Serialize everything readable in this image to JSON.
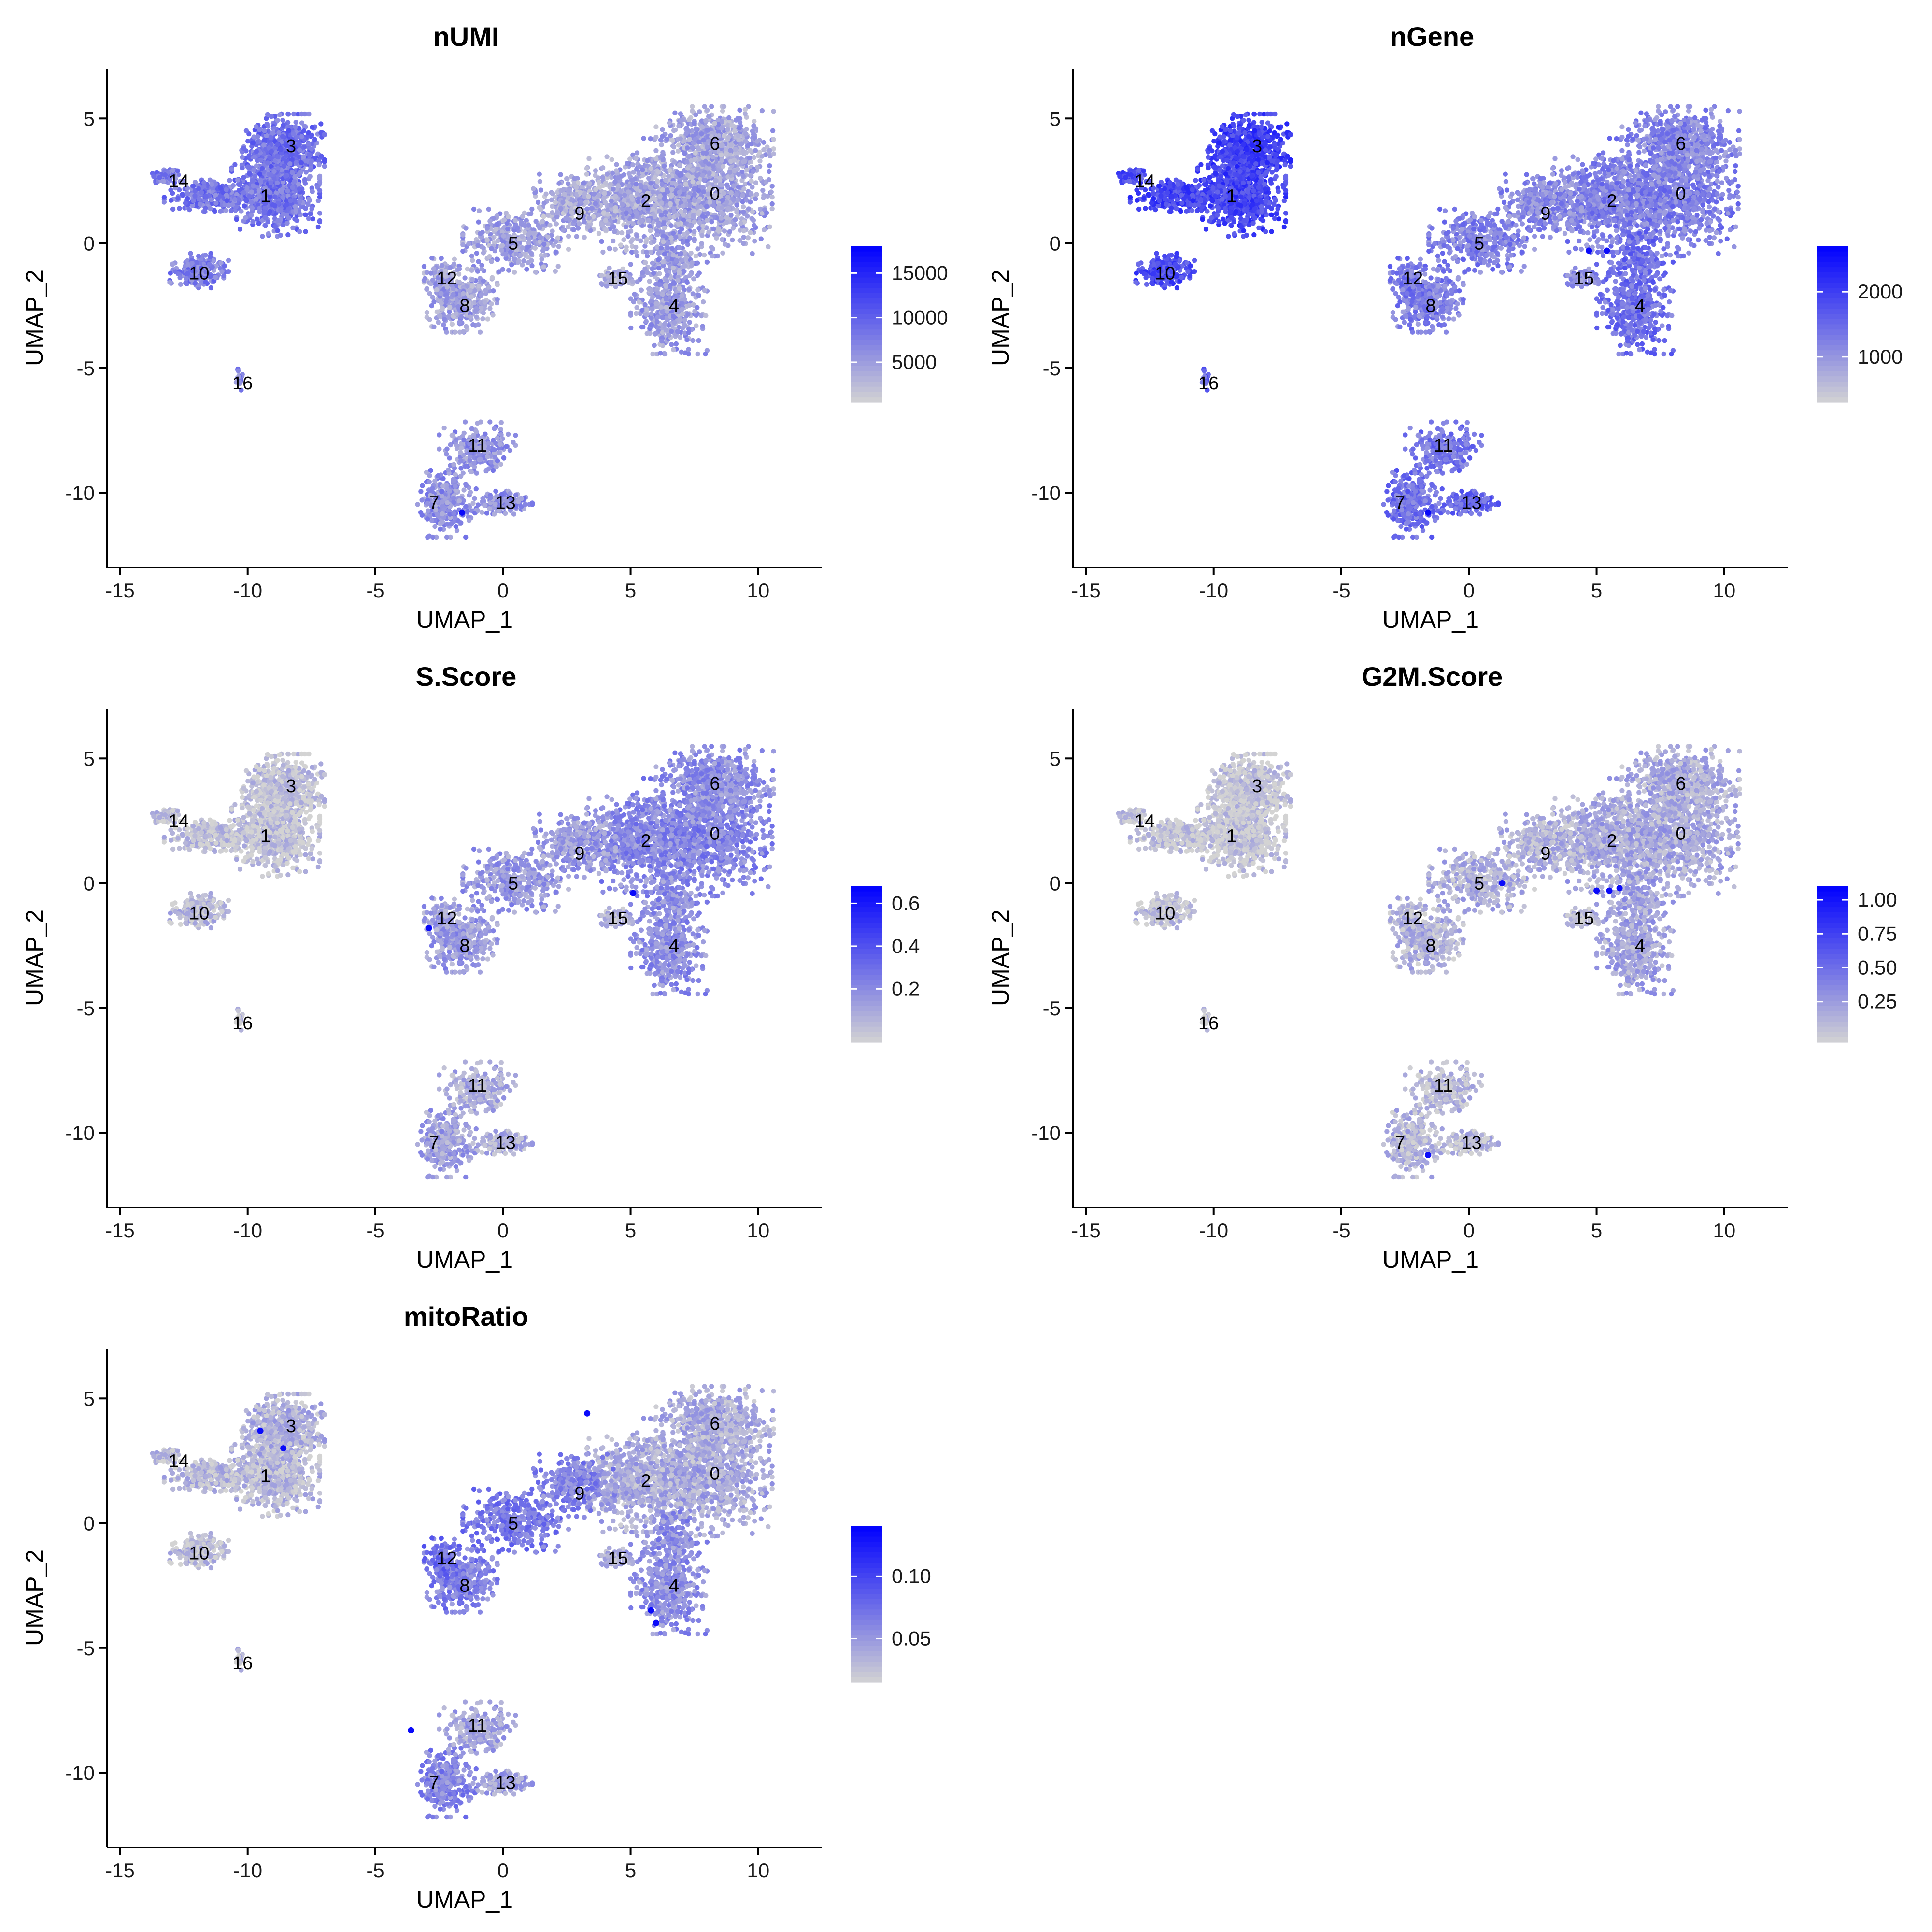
{
  "chart_data": [
    {
      "type": "scatter",
      "title": "nUMI",
      "xlabel": "UMAP_1",
      "ylabel": "UMAP_2",
      "xlim": [
        -15.5,
        12.5
      ],
      "ylim": [
        -13,
        7
      ],
      "xticks": [
        -15,
        -10,
        -5,
        0,
        5,
        10
      ],
      "yticks": [
        5,
        0,
        -5,
        -10
      ],
      "color_scale": {
        "low": "#d3d3d3",
        "high": "#0000ff",
        "min": 500,
        "max": 18000,
        "ticks": [
          15000,
          10000,
          5000
        ]
      },
      "cluster_intensity": {
        "0": 0.22,
        "1": 0.42,
        "2": 0.2,
        "3": 0.45,
        "4": 0.24,
        "5": 0.22,
        "6": 0.2,
        "7": 0.3,
        "8": 0.22,
        "9": 0.18,
        "10": 0.38,
        "11": 0.28,
        "12": 0.22,
        "13": 0.3,
        "14": 0.38,
        "15": 0.18,
        "16": 0.35
      },
      "hotspots": [
        [
          -1.6,
          -10.8
        ]
      ]
    },
    {
      "type": "scatter",
      "title": "nGene",
      "xlabel": "UMAP_1",
      "ylabel": "UMAP_2",
      "xlim": [
        -15.5,
        12.5
      ],
      "ylim": [
        -13,
        7
      ],
      "xticks": [
        -15,
        -10,
        -5,
        0,
        5,
        10
      ],
      "yticks": [
        5,
        0,
        -5,
        -10
      ],
      "color_scale": {
        "low": "#d3d3d3",
        "high": "#0000ff",
        "min": 300,
        "max": 2700,
        "ticks": [
          2000,
          1000
        ]
      },
      "cluster_intensity": {
        "0": 0.38,
        "1": 0.65,
        "2": 0.36,
        "3": 0.68,
        "4": 0.45,
        "5": 0.36,
        "6": 0.34,
        "7": 0.45,
        "8": 0.38,
        "9": 0.32,
        "10": 0.62,
        "11": 0.42,
        "12": 0.4,
        "13": 0.5,
        "14": 0.6,
        "15": 0.32,
        "16": 0.5
      },
      "hotspots": [
        [
          4.7,
          -0.3
        ],
        [
          5.4,
          -0.3
        ],
        [
          -1.6,
          -10.8
        ]
      ]
    },
    {
      "type": "scatter",
      "title": "S.Score",
      "xlabel": "UMAP_1",
      "ylabel": "UMAP_2",
      "xlim": [
        -15.5,
        12.5
      ],
      "ylim": [
        -13,
        7
      ],
      "xticks": [
        -15,
        -10,
        -5,
        0,
        5,
        10
      ],
      "yticks": [
        5,
        0,
        -5,
        -10
      ],
      "color_scale": {
        "low": "#d3d3d3",
        "high": "#0000ff",
        "min": -0.05,
        "max": 0.68,
        "ticks": [
          0.6,
          0.4,
          0.2
        ]
      },
      "cluster_intensity": {
        "0": 0.35,
        "1": 0.06,
        "2": 0.33,
        "3": 0.06,
        "4": 0.3,
        "5": 0.25,
        "6": 0.3,
        "7": 0.22,
        "8": 0.25,
        "9": 0.24,
        "10": 0.1,
        "11": 0.16,
        "12": 0.22,
        "13": 0.16,
        "14": 0.06,
        "15": 0.15,
        "16": 0.06
      },
      "hotspots": [
        [
          -2.9,
          -1.8
        ],
        [
          5.1,
          -0.4
        ]
      ]
    },
    {
      "type": "scatter",
      "title": "G2M.Score",
      "xlabel": "UMAP_1",
      "ylabel": "UMAP_2",
      "xlim": [
        -15.5,
        12.5
      ],
      "ylim": [
        -13,
        7
      ],
      "xticks": [
        -15,
        -10,
        -5,
        0,
        5,
        10
      ],
      "yticks": [
        5,
        0,
        -5,
        -10
      ],
      "color_scale": {
        "low": "#d3d3d3",
        "high": "#0000ff",
        "min": -0.05,
        "max": 1.1,
        "ticks": [
          1.0,
          0.75,
          0.5,
          0.25
        ],
        "tick_labels": [
          "1.00",
          "0.75",
          "0.50",
          "0.25"
        ]
      },
      "cluster_intensity": {
        "0": 0.18,
        "1": 0.04,
        "2": 0.17,
        "3": 0.04,
        "4": 0.2,
        "5": 0.14,
        "6": 0.16,
        "7": 0.12,
        "8": 0.14,
        "9": 0.13,
        "10": 0.06,
        "11": 0.1,
        "12": 0.12,
        "13": 0.1,
        "14": 0.04,
        "15": 0.1,
        "16": 0.04
      },
      "hotspots": [
        [
          1.3,
          0.0
        ],
        [
          5.0,
          -0.3
        ],
        [
          5.5,
          -0.3
        ],
        [
          5.9,
          -0.2
        ],
        [
          -1.6,
          -10.9
        ]
      ]
    },
    {
      "type": "scatter",
      "title": "mitoRatio",
      "xlabel": "UMAP_1",
      "ylabel": "UMAP_2",
      "xlim": [
        -15.5,
        12.5
      ],
      "ylim": [
        -13,
        7
      ],
      "xticks": [
        -15,
        -10,
        -5,
        0,
        5,
        10
      ],
      "yticks": [
        5,
        0,
        -5,
        -10
      ],
      "color_scale": {
        "low": "#d3d3d3",
        "high": "#0000ff",
        "min": 0.015,
        "max": 0.14,
        "ticks": [
          0.1,
          0.05
        ],
        "tick_labels": [
          "0.10",
          "0.05"
        ]
      },
      "cluster_intensity": {
        "0": 0.18,
        "1": 0.1,
        "2": 0.16,
        "3": 0.14,
        "4": 0.3,
        "5": 0.4,
        "6": 0.16,
        "7": 0.35,
        "8": 0.38,
        "9": 0.35,
        "10": 0.08,
        "11": 0.2,
        "12": 0.45,
        "13": 0.22,
        "14": 0.08,
        "15": 0.18,
        "16": 0.1
      },
      "hotspots": [
        [
          3.3,
          4.4
        ],
        [
          -9.5,
          3.7
        ],
        [
          -8.6,
          3.0
        ],
        [
          -3.6,
          -8.3
        ],
        [
          6.0,
          -4.0
        ],
        [
          5.8,
          -3.5
        ]
      ]
    }
  ],
  "clusters": [
    {
      "id": "0",
      "label": "0",
      "x": 8.3,
      "y": 2.0
    },
    {
      "id": "1",
      "label": "1",
      "x": -9.3,
      "y": 1.9
    },
    {
      "id": "2",
      "label": "2",
      "x": 5.6,
      "y": 1.7
    },
    {
      "id": "3",
      "label": "3",
      "x": -8.3,
      "y": 3.9
    },
    {
      "id": "4",
      "label": "4",
      "x": 6.7,
      "y": -2.5
    },
    {
      "id": "5",
      "label": "5",
      "x": 0.4,
      "y": 0.0
    },
    {
      "id": "6",
      "label": "6",
      "x": 8.3,
      "y": 4.0
    },
    {
      "id": "7",
      "label": "7",
      "x": -2.7,
      "y": -10.4
    },
    {
      "id": "8",
      "label": "8",
      "x": -1.5,
      "y": -2.5
    },
    {
      "id": "9",
      "label": "9",
      "x": 3.0,
      "y": 1.2
    },
    {
      "id": "10",
      "label": "10",
      "x": -11.9,
      "y": -1.2
    },
    {
      "id": "11",
      "label": "11",
      "x": -1.0,
      "y": -8.1
    },
    {
      "id": "12",
      "label": "12",
      "x": -2.2,
      "y": -1.4
    },
    {
      "id": "13",
      "label": "13",
      "x": 0.1,
      "y": -10.4
    },
    {
      "id": "14",
      "label": "14",
      "x": -12.7,
      "y": 2.5
    },
    {
      "id": "15",
      "label": "15",
      "x": 4.5,
      "y": -1.4
    },
    {
      "id": "16",
      "label": "16",
      "x": -10.2,
      "y": -5.6
    }
  ]
}
